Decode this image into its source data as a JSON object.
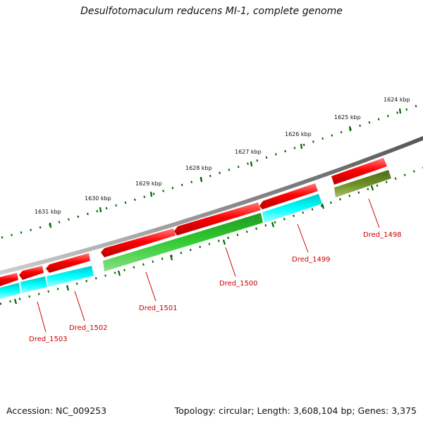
{
  "title": "Desulfotomaculum reducens MI-1, complete genome",
  "footer": {
    "accession": "Accession: NC_009253",
    "summary": "Topology: circular; Length: 3,608,104 bp; Genes: 3,375"
  },
  "colors": {
    "backbone": "#808080",
    "forward_gene": "#ff0000",
    "cds_cyan": "#00ffff",
    "cds_green": "#33cc33",
    "cds_olive": "#6b8e23",
    "tick": "#006400",
    "label": "#cc0000"
  },
  "scale_labels": [
    "1624 kbp",
    "1625 kbp",
    "1626 kbp",
    "1627 kbp",
    "1628 kbp",
    "1629 kbp",
    "1630 kbp",
    "1631 kbp"
  ],
  "gene_labels": [
    "Dred_1498",
    "Dred_1499",
    "Dred_1500",
    "Dred_1501",
    "Dred_1502",
    "Dred_1503"
  ]
}
